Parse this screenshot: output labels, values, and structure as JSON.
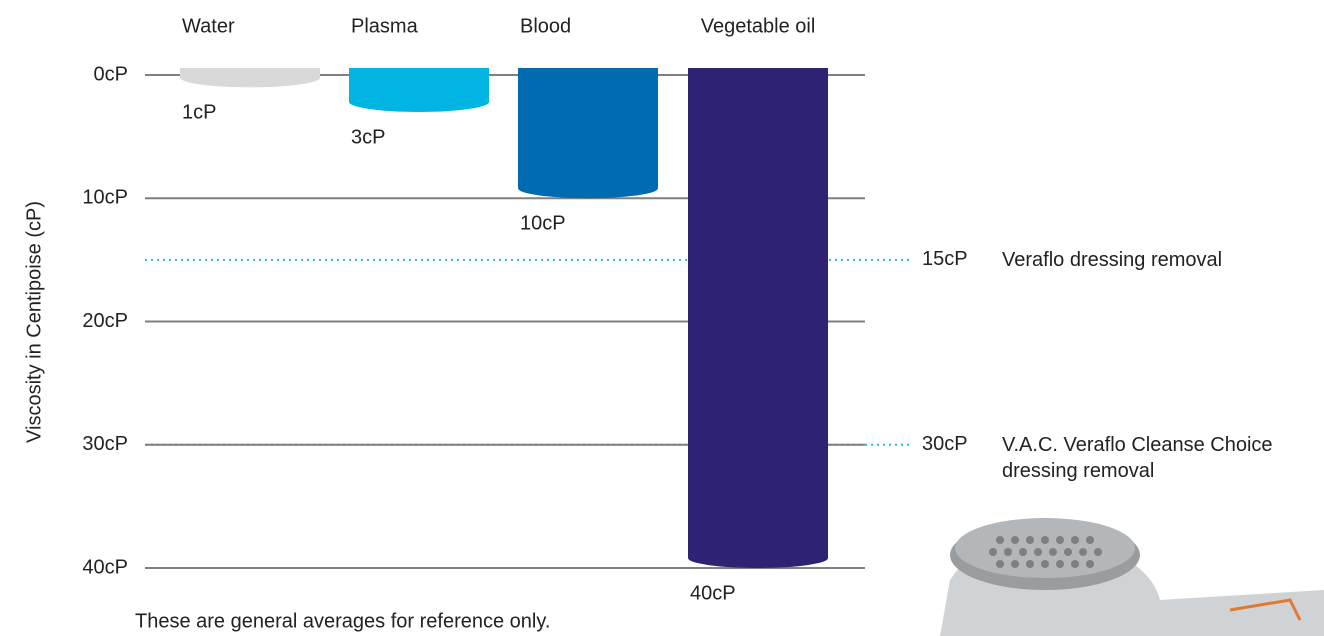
{
  "chart_data": {
    "type": "bar",
    "y_label": "Viscosity in Centipoise (cP)",
    "footnote": "These are general averages for reference only.",
    "categories": [
      "Water",
      "Plasma",
      "Blood",
      "Vegetable oil"
    ],
    "values": [
      1,
      3,
      10,
      40
    ],
    "value_labels": [
      "1cP",
      "3cP",
      "10cP",
      "40cP"
    ],
    "colors": [
      "#d9d9d9",
      "#00b5e2",
      "#006bb1",
      "#2e2272"
    ],
    "ylim": [
      0,
      40
    ],
    "inverted": true,
    "yticks": [
      {
        "value": 0,
        "label": "0cP"
      },
      {
        "value": 10,
        "label": "10cP"
      },
      {
        "value": 20,
        "label": "20cP"
      },
      {
        "value": 30,
        "label": "30cP"
      },
      {
        "value": 40,
        "label": "40cP"
      }
    ],
    "grid": true,
    "reference_lines": [
      {
        "value": 15,
        "value_label": "15cP",
        "label": "Veraflo dressing removal",
        "color": "#2bbfc8"
      },
      {
        "value": 30,
        "value_label": "30cP",
        "label": "V.A.C. Veraflo Cleanse Choice dressing removal",
        "color": "#2bbfc8"
      }
    ]
  }
}
